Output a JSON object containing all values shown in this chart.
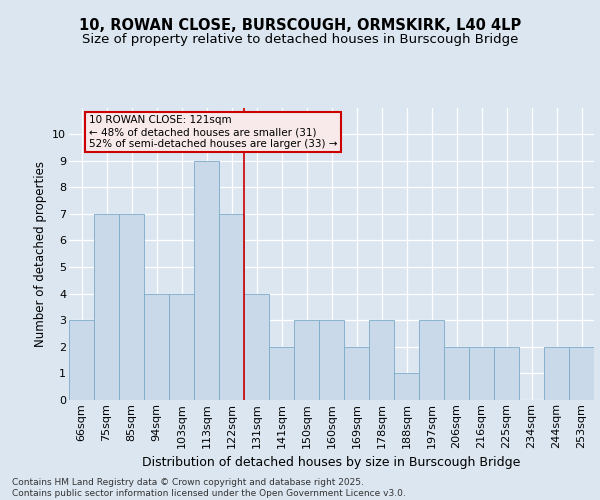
{
  "title": "10, ROWAN CLOSE, BURSCOUGH, ORMSKIRK, L40 4LP",
  "subtitle": "Size of property relative to detached houses in Burscough Bridge",
  "xlabel": "Distribution of detached houses by size in Burscough Bridge",
  "ylabel": "Number of detached properties",
  "categories": [
    "66sqm",
    "75sqm",
    "85sqm",
    "94sqm",
    "103sqm",
    "113sqm",
    "122sqm",
    "131sqm",
    "141sqm",
    "150sqm",
    "160sqm",
    "169sqm",
    "178sqm",
    "188sqm",
    "197sqm",
    "206sqm",
    "216sqm",
    "225sqm",
    "234sqm",
    "244sqm",
    "253sqm"
  ],
  "values": [
    3,
    7,
    7,
    4,
    4,
    9,
    7,
    4,
    2,
    3,
    3,
    2,
    3,
    1,
    3,
    2,
    2,
    2,
    0,
    2,
    2
  ],
  "bar_color": "#c9d9ea",
  "bar_edge_color": "#7aaac8",
  "highlight_index": 6,
  "highlight_line_color": "#cc0000",
  "annotation_text": "10 ROWAN CLOSE: 121sqm\n← 48% of detached houses are smaller (31)\n52% of semi-detached houses are larger (33) →",
  "annotation_edge_color": "#cc0000",
  "ylim": [
    0,
    11
  ],
  "yticks": [
    0,
    1,
    2,
    3,
    4,
    5,
    6,
    7,
    8,
    9,
    10
  ],
  "grid_color": "#c0ccd8",
  "background_color": "#dce6f0",
  "footer": "Contains HM Land Registry data © Crown copyright and database right 2025.\nContains public sector information licensed under the Open Government Licence v3.0.",
  "title_fontsize": 10.5,
  "subtitle_fontsize": 9.5,
  "ylabel_fontsize": 8.5,
  "xlabel_fontsize": 9,
  "tick_fontsize": 8,
  "footer_fontsize": 6.5,
  "annotation_fontsize": 7.5
}
